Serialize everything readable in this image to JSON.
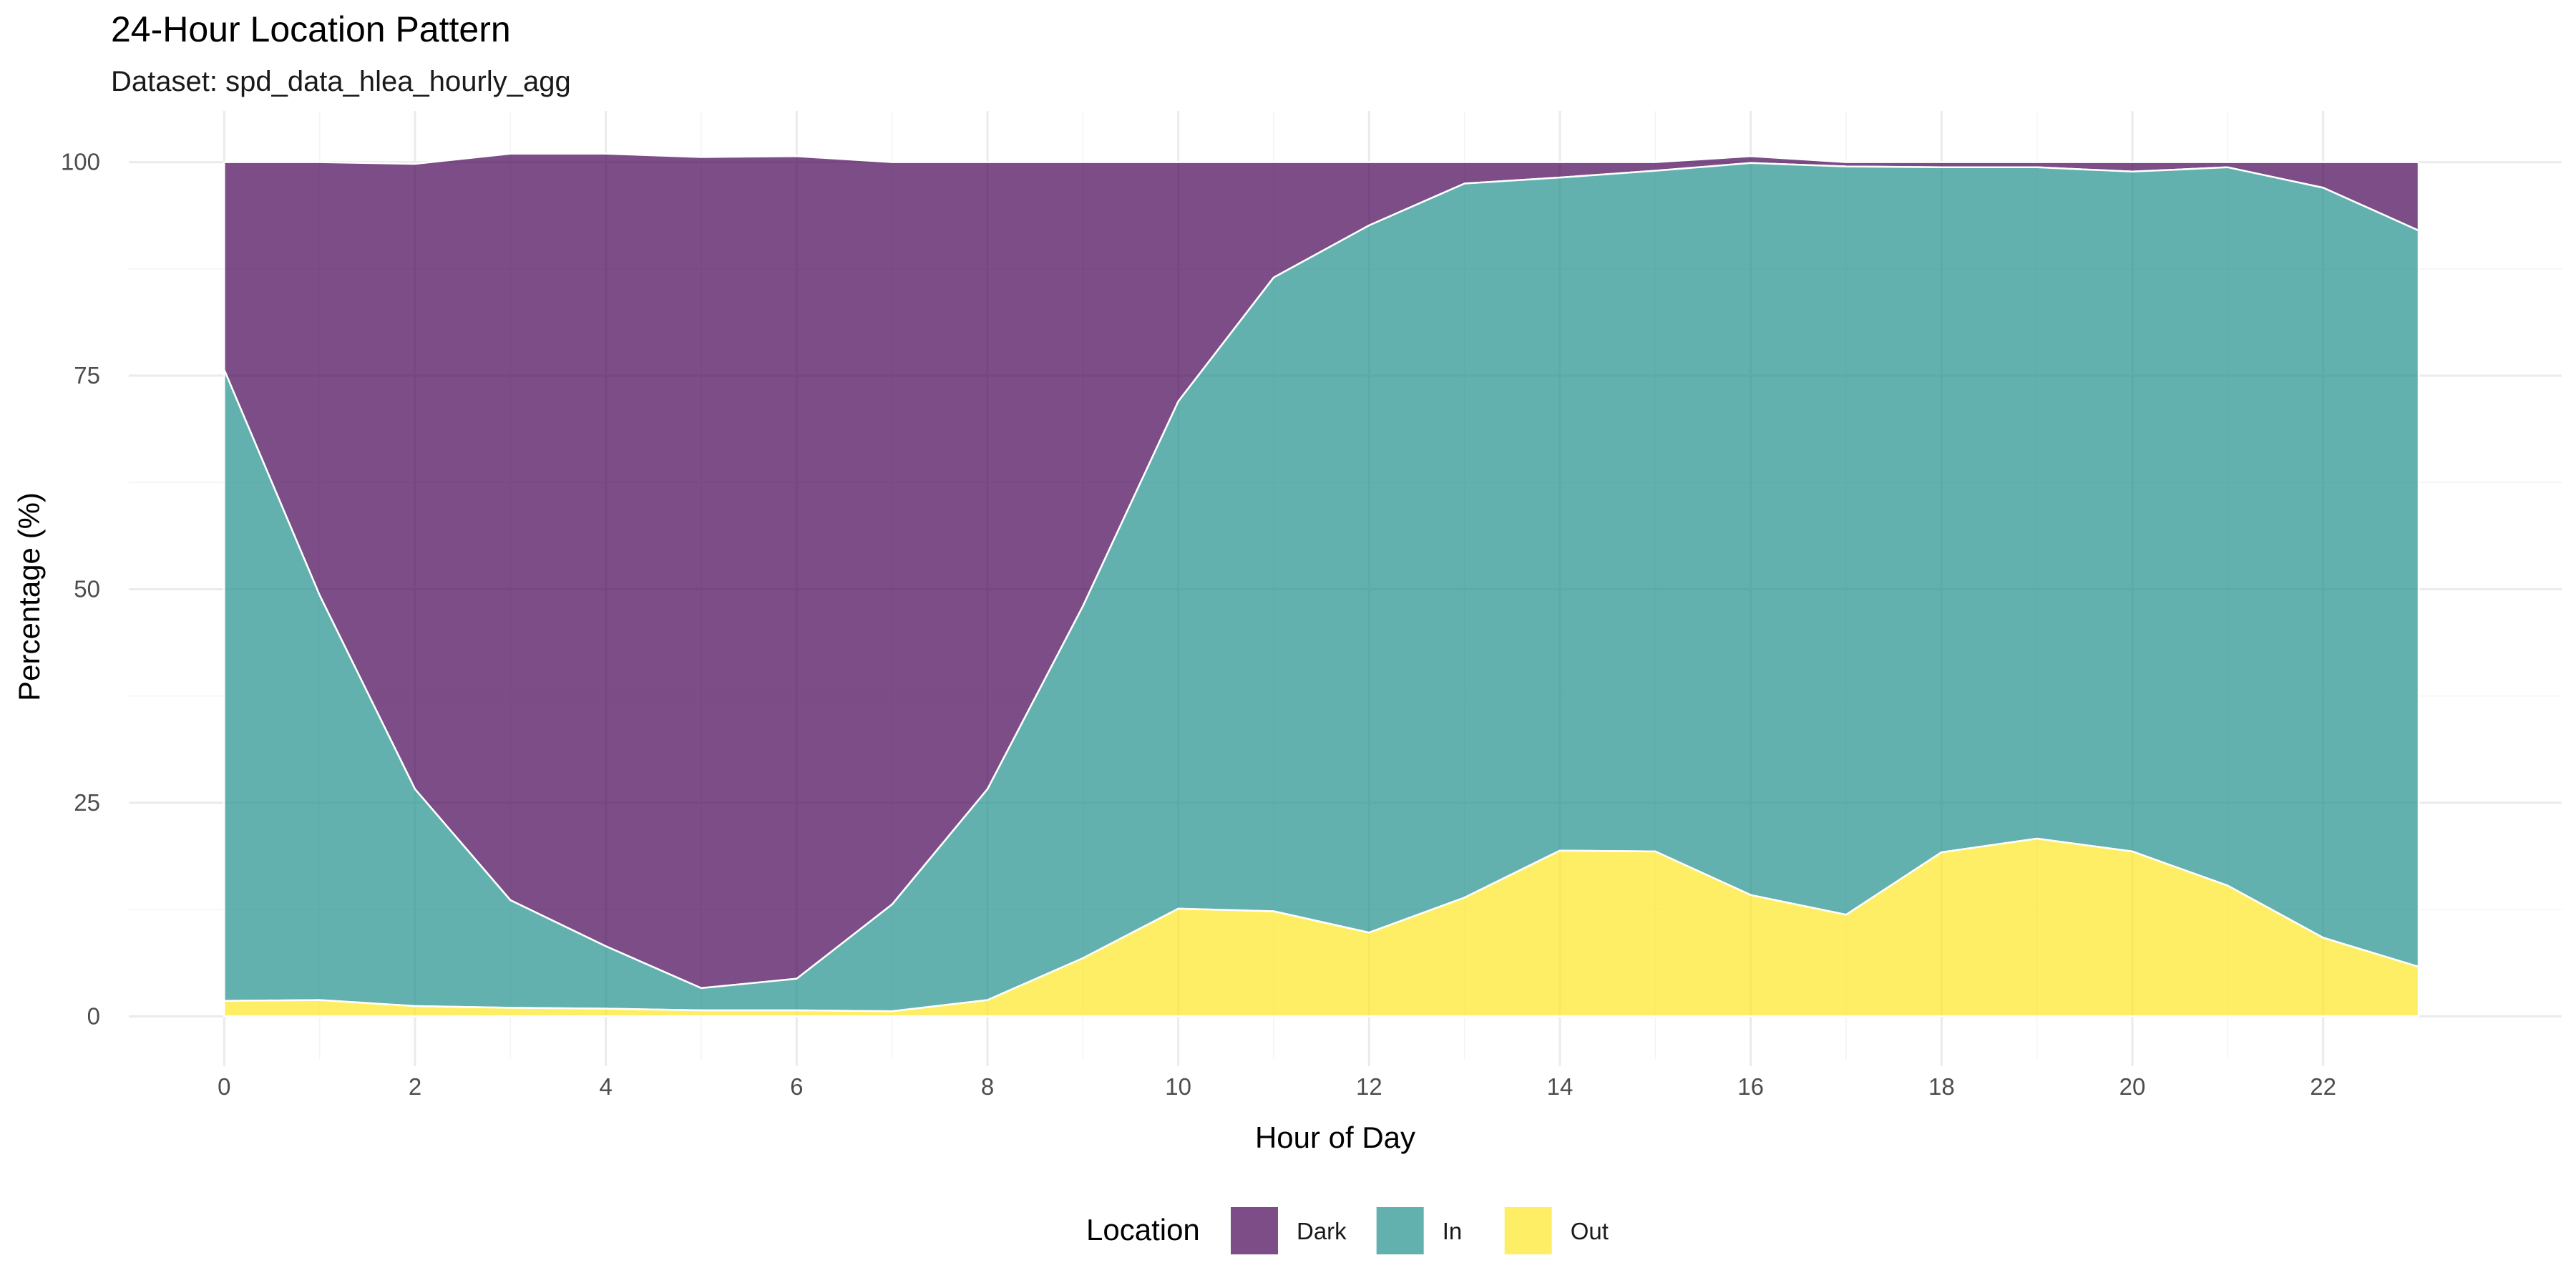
{
  "chart_data": {
    "type": "area",
    "stacked": true,
    "title": "24-Hour Location Pattern",
    "subtitle": "Dataset: spd_data_hlea_hourly_agg",
    "xlabel": "Hour of Day",
    "ylabel": "Percentage (%)",
    "xlim": [
      -1,
      24.5
    ],
    "ylim": [
      -5,
      106
    ],
    "x_ticks": [
      0,
      2,
      4,
      6,
      8,
      10,
      12,
      14,
      16,
      18,
      20,
      22
    ],
    "y_ticks": [
      0,
      25,
      50,
      75,
      100
    ],
    "grid": true,
    "legend": {
      "title": "Location",
      "position": "bottom"
    },
    "x": [
      0,
      1,
      2,
      3,
      4,
      5,
      6,
      7,
      8,
      9,
      10,
      11,
      12,
      13,
      14,
      15,
      16,
      17,
      18,
      19,
      20,
      21,
      22,
      23
    ],
    "series": [
      {
        "name": "Out",
        "color": "#FDE725",
        "values": [
          1.8,
          1.9,
          1.2,
          1.0,
          0.9,
          0.7,
          0.7,
          0.6,
          1.9,
          6.8,
          12.6,
          12.3,
          9.8,
          13.9,
          19.4,
          19.3,
          14.2,
          11.9,
          19.2,
          20.8,
          19.3,
          15.3,
          9.2,
          5.8
        ]
      },
      {
        "name": "In",
        "color": "#21908C",
        "values": [
          73.9,
          47.4,
          25.4,
          12.6,
          7.3,
          2.6,
          3.7,
          12.5,
          24.7,
          41.2,
          59.4,
          74.2,
          82.8,
          83.6,
          78.8,
          79.7,
          85.7,
          87.6,
          80.2,
          78.6,
          79.6,
          84.1,
          87.8,
          86.2
        ]
      },
      {
        "name": "Dark",
        "color": "#440154",
        "values": [
          24.3,
          50.7,
          73.2,
          87.4,
          92.8,
          97.3,
          96.3,
          86.9,
          73.4,
          52.0,
          28.0,
          13.5,
          7.4,
          2.5,
          1.8,
          1.0,
          0.8,
          0.5,
          0.6,
          0.6,
          1.1,
          0.6,
          3.0,
          8.0
        ]
      }
    ]
  },
  "legend_items": [
    {
      "label": "Dark",
      "color": "#440154"
    },
    {
      "label": "In",
      "color": "#21908C"
    },
    {
      "label": "Out",
      "color": "#FDE725"
    }
  ]
}
